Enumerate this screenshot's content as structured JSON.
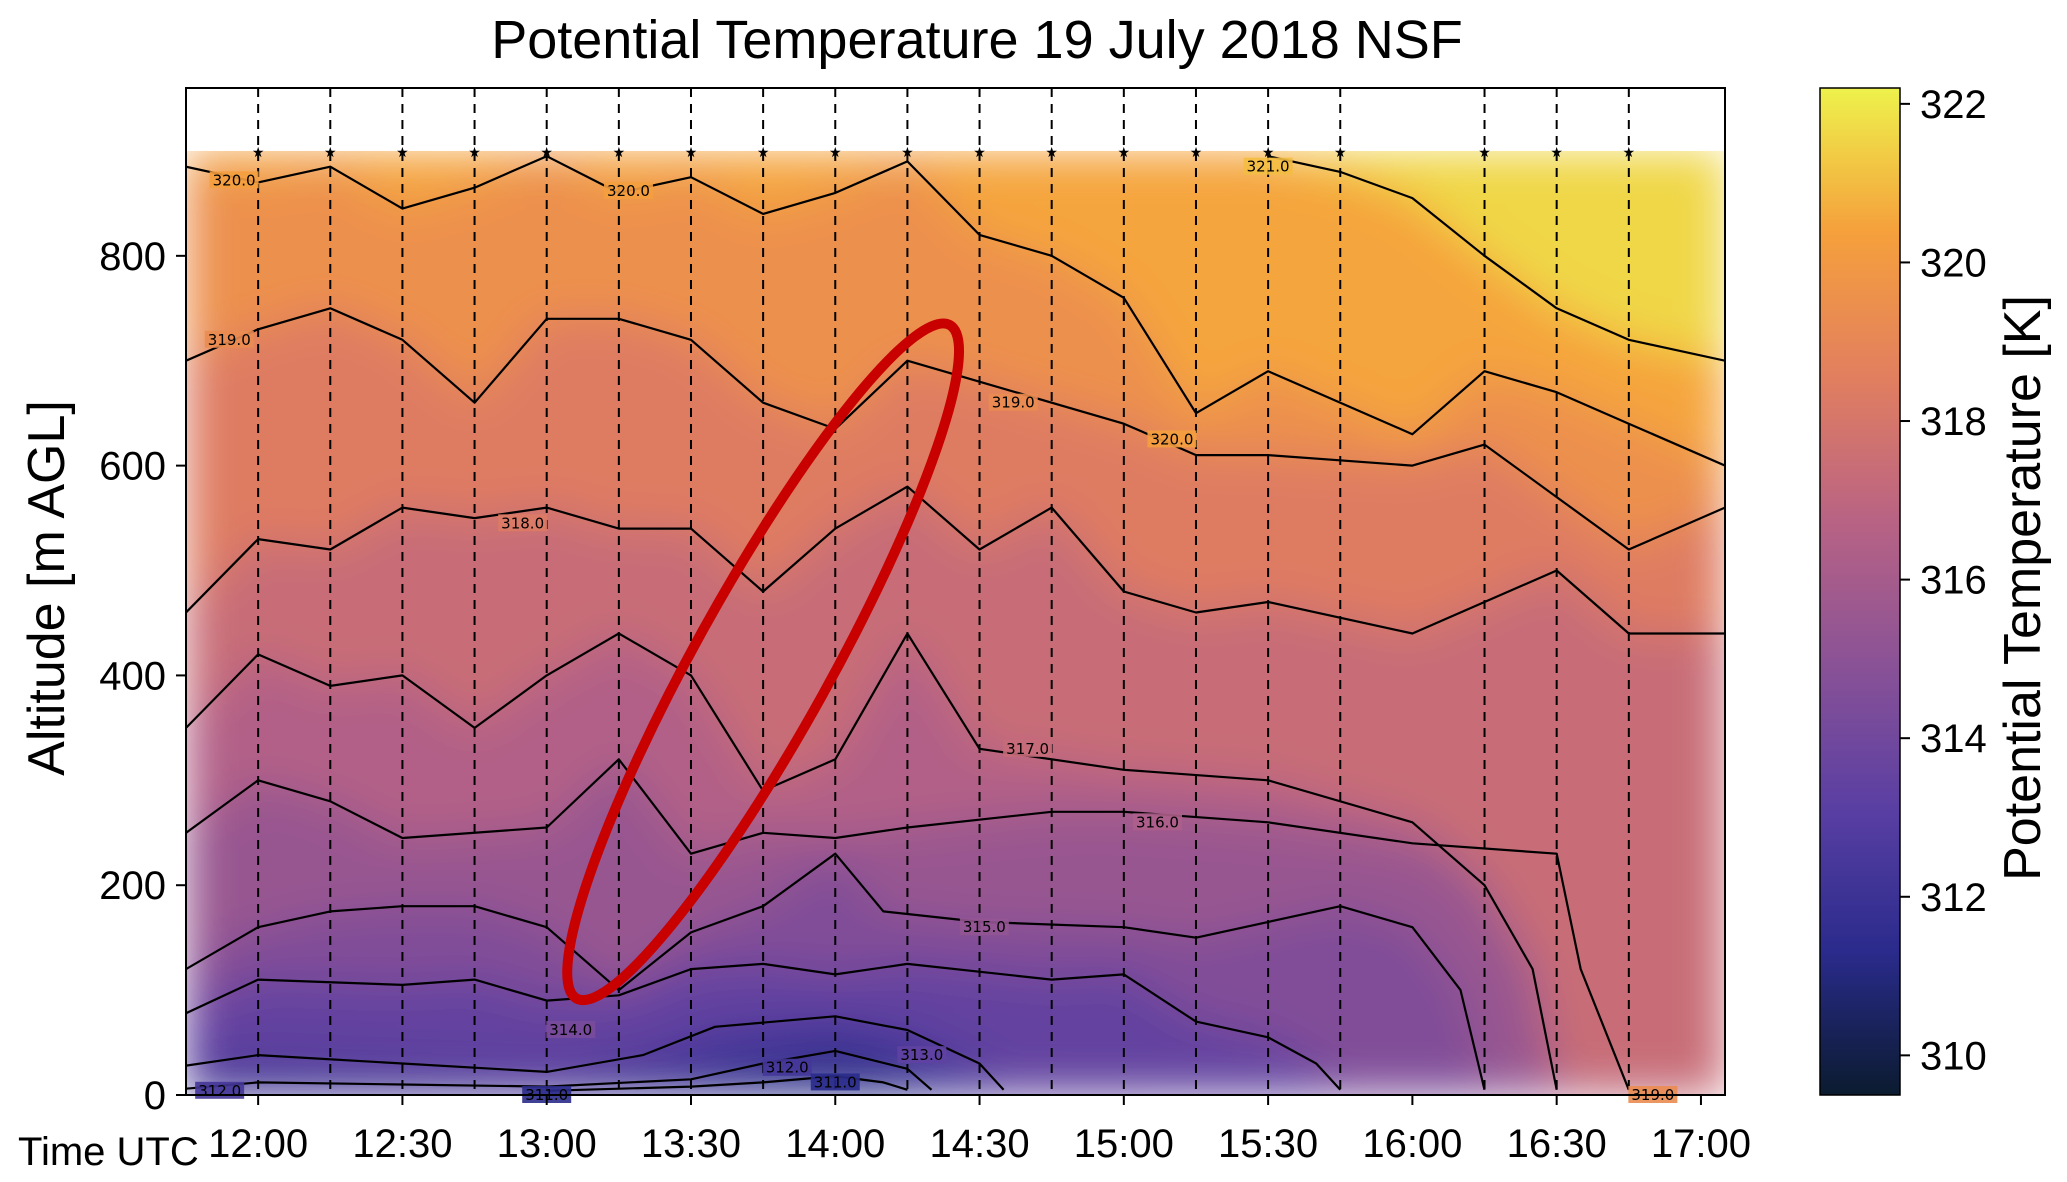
{
  "chart_data": {
    "type": "heatmap",
    "title": "Potential Temperature 19 July 2018 NSF",
    "xlabel": "Time UTC",
    "ylabel": "Altitude [m AGL]",
    "xlim": [
      "11:45",
      "17:05"
    ],
    "ylim": [
      0,
      960
    ],
    "x_ticks": [
      "12:00",
      "12:30",
      "13:00",
      "13:30",
      "14:00",
      "14:30",
      "15:00",
      "15:30",
      "16:00",
      "16:30",
      "17:00"
    ],
    "y_ticks": [
      0,
      200,
      400,
      600,
      800
    ],
    "colorbar": {
      "label": "Potential Temperature [K]",
      "min": 309.5,
      "max": 322.2,
      "ticks": [
        310,
        312,
        314,
        316,
        318,
        320,
        322
      ],
      "colormap": [
        "#0b1b2f",
        "#2a2b8c",
        "#5a3fa3",
        "#8a5296",
        "#b96384",
        "#e27f5f",
        "#f5a03c",
        "#eef24c"
      ]
    },
    "profile_times": [
      "11:45",
      "12:00",
      "12:15",
      "12:30",
      "12:45",
      "13:00",
      "13:15",
      "13:30",
      "13:45",
      "14:00",
      "14:15",
      "14:30",
      "14:45",
      "15:00",
      "15:15",
      "15:30",
      "15:45",
      "16:15",
      "16:30",
      "16:45",
      "17:05"
    ],
    "profile_top_altitude": 900,
    "contours": [
      {
        "level": "311.0",
        "points": [
          [
            "13:00",
            4
          ],
          [
            "13:30",
            8
          ],
          [
            "13:45",
            12
          ],
          [
            "14:00",
            18
          ],
          [
            "14:10",
            12
          ],
          [
            "14:15",
            5
          ]
        ]
      },
      {
        "level": "312.0",
        "points": [
          [
            "11:45",
            6
          ],
          [
            "12:00",
            12
          ],
          [
            "12:30",
            10
          ],
          [
            "13:00",
            8
          ],
          [
            "13:30",
            15
          ],
          [
            "13:45",
            30
          ],
          [
            "14:00",
            42
          ],
          [
            "14:15",
            25
          ],
          [
            "14:20",
            5
          ]
        ]
      },
      {
        "level": "313.0",
        "points": [
          [
            "11:45",
            28
          ],
          [
            "12:00",
            38
          ],
          [
            "12:30",
            30
          ],
          [
            "13:00",
            22
          ],
          [
            "13:20",
            38
          ],
          [
            "13:35",
            65
          ],
          [
            "14:00",
            75
          ],
          [
            "14:15",
            62
          ],
          [
            "14:30",
            30
          ],
          [
            "14:35",
            5
          ]
        ]
      },
      {
        "level": "314.0",
        "points": [
          [
            "11:45",
            78
          ],
          [
            "12:00",
            110
          ],
          [
            "12:30",
            105
          ],
          [
            "12:45",
            110
          ],
          [
            "13:00",
            90
          ],
          [
            "13:15",
            95
          ],
          [
            "13:30",
            120
          ],
          [
            "13:45",
            125
          ],
          [
            "14:00",
            115
          ],
          [
            "14:15",
            125
          ],
          [
            "14:45",
            110
          ],
          [
            "15:00",
            115
          ],
          [
            "15:15",
            70
          ],
          [
            "15:30",
            55
          ],
          [
            "15:40",
            30
          ],
          [
            "15:45",
            5
          ]
        ]
      },
      {
        "level": "315.0",
        "points": [
          [
            "11:45",
            120
          ],
          [
            "12:00",
            160
          ],
          [
            "12:15",
            175
          ],
          [
            "12:30",
            180
          ],
          [
            "12:45",
            180
          ],
          [
            "13:00",
            160
          ],
          [
            "13:15",
            100
          ],
          [
            "13:30",
            155
          ],
          [
            "13:45",
            180
          ],
          [
            "14:00",
            230
          ],
          [
            "14:10",
            175
          ],
          [
            "14:30",
            165
          ],
          [
            "15:00",
            160
          ],
          [
            "15:15",
            150
          ],
          [
            "15:45",
            180
          ],
          [
            "16:00",
            160
          ],
          [
            "16:10",
            100
          ],
          [
            "16:15",
            5
          ]
        ]
      },
      {
        "level": "316.0",
        "points": [
          [
            "11:45",
            250
          ],
          [
            "12:00",
            300
          ],
          [
            "12:15",
            280
          ],
          [
            "12:30",
            245
          ],
          [
            "13:00",
            255
          ],
          [
            "13:15",
            320
          ],
          [
            "13:30",
            230
          ],
          [
            "13:45",
            250
          ],
          [
            "14:00",
            245
          ],
          [
            "14:15",
            255
          ],
          [
            "14:45",
            270
          ],
          [
            "15:00",
            270
          ],
          [
            "15:30",
            260
          ],
          [
            "16:00",
            240
          ],
          [
            "16:30",
            230
          ],
          [
            "16:35",
            120
          ],
          [
            "16:45",
            5
          ]
        ]
      },
      {
        "level": "317.0",
        "points": [
          [
            "11:45",
            350
          ],
          [
            "12:00",
            420
          ],
          [
            "12:15",
            390
          ],
          [
            "12:30",
            400
          ],
          [
            "12:45",
            350
          ],
          [
            "13:00",
            400
          ],
          [
            "13:15",
            440
          ],
          [
            "13:30",
            400
          ],
          [
            "13:45",
            290
          ],
          [
            "14:00",
            320
          ],
          [
            "14:15",
            440
          ],
          [
            "14:30",
            330
          ],
          [
            "15:00",
            310
          ],
          [
            "15:30",
            300
          ],
          [
            "16:00",
            260
          ],
          [
            "16:15",
            200
          ],
          [
            "16:25",
            120
          ],
          [
            "16:30",
            5
          ]
        ]
      },
      {
        "level": "318.0",
        "points": [
          [
            "11:45",
            460
          ],
          [
            "12:00",
            530
          ],
          [
            "12:15",
            520
          ],
          [
            "12:30",
            560
          ],
          [
            "12:45",
            550
          ],
          [
            "13:00",
            560
          ],
          [
            "13:15",
            540
          ],
          [
            "13:30",
            540
          ],
          [
            "13:45",
            480
          ],
          [
            "14:00",
            540
          ],
          [
            "14:15",
            580
          ],
          [
            "14:30",
            520
          ],
          [
            "14:45",
            560
          ],
          [
            "15:00",
            480
          ],
          [
            "15:15",
            460
          ],
          [
            "15:30",
            470
          ],
          [
            "16:00",
            440
          ],
          [
            "16:15",
            470
          ],
          [
            "16:30",
            500
          ],
          [
            "16:45",
            440
          ],
          [
            "17:05",
            440
          ]
        ]
      },
      {
        "level": "319.0",
        "points": [
          [
            "11:45",
            700
          ],
          [
            "12:00",
            730
          ],
          [
            "12:15",
            750
          ],
          [
            "12:30",
            720
          ],
          [
            "12:45",
            660
          ],
          [
            "13:00",
            740
          ],
          [
            "13:15",
            740
          ],
          [
            "13:30",
            720
          ],
          [
            "13:45",
            660
          ],
          [
            "14:00",
            635
          ],
          [
            "14:15",
            700
          ],
          [
            "14:30",
            680
          ],
          [
            "15:00",
            640
          ],
          [
            "15:15",
            610
          ],
          [
            "15:30",
            610
          ],
          [
            "16:00",
            600
          ],
          [
            "16:15",
            620
          ],
          [
            "16:30",
            570
          ],
          [
            "16:45",
            520
          ],
          [
            "17:05",
            560
          ]
        ]
      },
      {
        "level": "320.0",
        "points": [
          [
            "11:45",
            885
          ],
          [
            "12:00",
            870
          ],
          [
            "12:15",
            885
          ],
          [
            "12:30",
            845
          ],
          [
            "12:45",
            865
          ],
          [
            "13:00",
            895
          ],
          [
            "13:15",
            860
          ],
          [
            "13:30",
            875
          ],
          [
            "13:45",
            840
          ],
          [
            "14:00",
            860
          ],
          [
            "14:15",
            890
          ],
          [
            "14:30",
            820
          ],
          [
            "14:45",
            800
          ],
          [
            "15:00",
            760
          ],
          [
            "15:15",
            650
          ],
          [
            "15:30",
            690
          ],
          [
            "16:00",
            630
          ],
          [
            "16:15",
            690
          ],
          [
            "16:30",
            670
          ],
          [
            "16:45",
            640
          ],
          [
            "17:05",
            600
          ]
        ]
      },
      {
        "level": "321.0",
        "points": [
          [
            "15:30",
            895
          ],
          [
            "15:45",
            880
          ],
          [
            "16:00",
            855
          ],
          [
            "16:15",
            800
          ],
          [
            "16:30",
            750
          ],
          [
            "16:45",
            720
          ],
          [
            "17:05",
            700
          ]
        ]
      }
    ],
    "contour_labels": [
      {
        "text": "320.0",
        "x": "11:55",
        "y": 872
      },
      {
        "text": "320.0",
        "x": "13:17",
        "y": 862
      },
      {
        "text": "321.0",
        "x": "15:30",
        "y": 885
      },
      {
        "text": "319.0",
        "x": "11:54",
        "y": 720
      },
      {
        "text": "319.0",
        "x": "14:37",
        "y": 660
      },
      {
        "text": "320.0",
        "x": "15:10",
        "y": 625
      },
      {
        "text": "318.0",
        "x": "12:55",
        "y": 545
      },
      {
        "text": "317.0",
        "x": "14:40",
        "y": 330
      },
      {
        "text": "316.0",
        "x": "15:07",
        "y": 260
      },
      {
        "text": "315.0",
        "x": "14:31",
        "y": 160
      },
      {
        "text": "314.0",
        "x": "13:05",
        "y": 62
      },
      {
        "text": "313.0",
        "x": "14:18",
        "y": 38
      },
      {
        "text": "312.0",
        "x": "11:52",
        "y": 4
      },
      {
        "text": "312.0",
        "x": "13:50",
        "y": 26
      },
      {
        "text": "311.0",
        "x": "14:00",
        "y": 12
      },
      {
        "text": "311.0",
        "x": "13:00",
        "y": -2
      },
      {
        "text": "319.0",
        "x": "16:50",
        "y": -2
      }
    ],
    "annotation": {
      "shape": "ellipse",
      "color": "#c80000",
      "center": [
        "13:45",
        413
      ],
      "description_note": ""
    },
    "grid": false,
    "legend": "none"
  }
}
